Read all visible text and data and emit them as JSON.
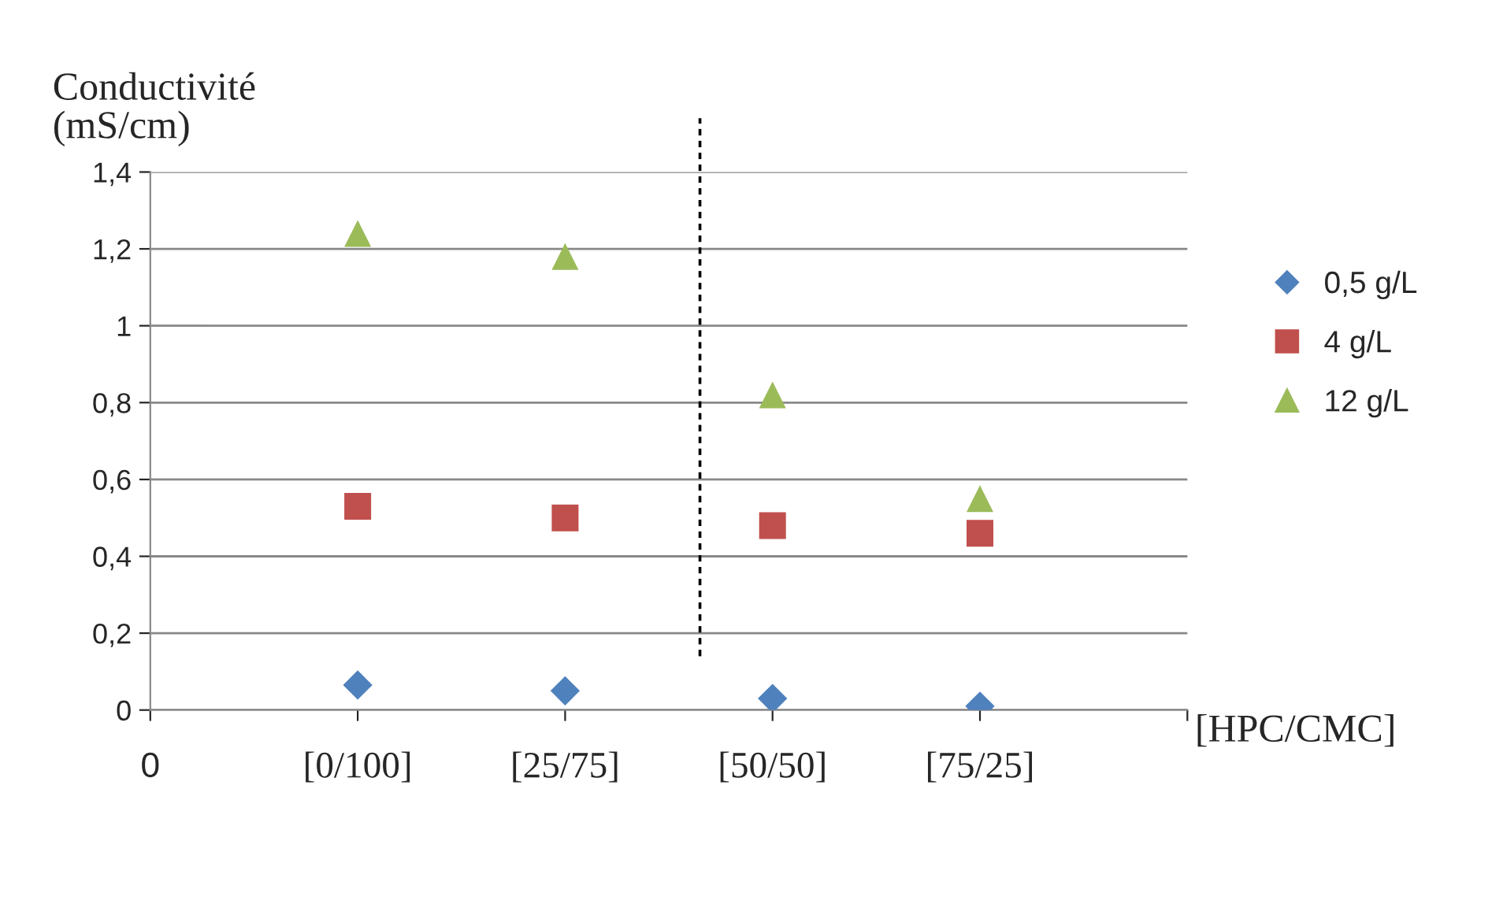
{
  "chart_data": {
    "type": "scatter",
    "ylabel": "Conductivité\n(mS/cm)",
    "xlabel": "[HPC/CMC]",
    "categories": [
      "0",
      "[0/100]",
      "[25/75]",
      "[50/50]",
      "[75/25]",
      null
    ],
    "series": [
      {
        "name": "0,5 g/L",
        "color": "#4f81bd",
        "marker": "diamond",
        "values": [
          null,
          0.065,
          0.05,
          0.03,
          0.01,
          null
        ]
      },
      {
        "name": "4 g/L",
        "color": "#c0504d",
        "marker": "square",
        "values": [
          null,
          0.53,
          0.5,
          0.48,
          0.46,
          null
        ]
      },
      {
        "name": "12 g/L",
        "color": "#9bbb59",
        "marker": "triangle",
        "values": [
          null,
          1.24,
          1.18,
          0.82,
          0.55,
          null
        ]
      }
    ],
    "ylim": [
      0,
      1.4
    ],
    "yticks": [
      0,
      {
        "value": 0.2,
        "label": "0,2"
      },
      {
        "value": 0.4,
        "label": "0,4"
      },
      {
        "value": 0.6,
        "label": "0,6"
      },
      {
        "value": 0.8,
        "label": "0,8"
      },
      1,
      {
        "value": 1.2,
        "label": "1,2"
      },
      {
        "value": 1.4,
        "label": "1,4"
      }
    ],
    "grid": "y",
    "legend": "right"
  }
}
